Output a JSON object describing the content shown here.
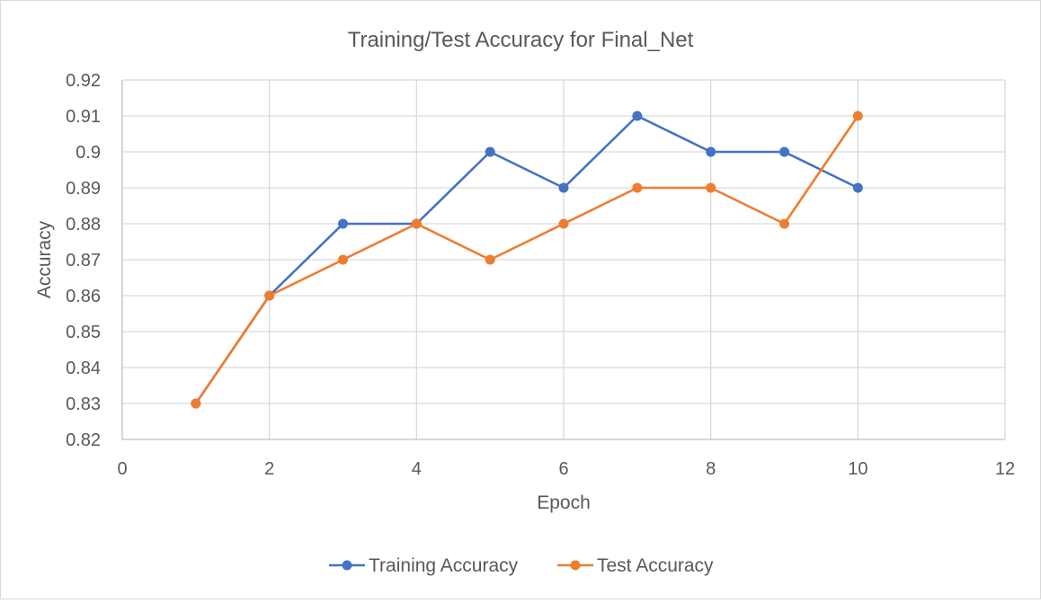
{
  "chart_data": {
    "type": "line",
    "title": "Training/Test Accuracy for Final_Net",
    "xlabel": "Epoch",
    "ylabel": "Accuracy",
    "xlim": [
      0,
      12
    ],
    "ylim": [
      0.82,
      0.92
    ],
    "x_ticks": [
      0,
      2,
      4,
      6,
      8,
      10,
      12
    ],
    "x_tick_labels": [
      "0",
      "2",
      "4",
      "6",
      "8",
      "10",
      "12"
    ],
    "y_ticks": [
      0.82,
      0.83,
      0.84,
      0.85,
      0.86,
      0.87,
      0.88,
      0.89,
      0.9,
      0.91,
      0.92
    ],
    "y_tick_labels": [
      "0.82",
      "0.83",
      "0.84",
      "0.85",
      "0.86",
      "0.87",
      "0.88",
      "0.89",
      "0.9",
      "0.91",
      "0.92"
    ],
    "grid": true,
    "legend_position": "bottom",
    "x": [
      1,
      2,
      3,
      4,
      5,
      6,
      7,
      8,
      9,
      10
    ],
    "series": [
      {
        "name": "Training Accuracy",
        "color": "#4472c4",
        "values": [
          0.83,
          0.86,
          0.88,
          0.88,
          0.9,
          0.89,
          0.91,
          0.9,
          0.9,
          0.89
        ]
      },
      {
        "name": "Test Accuracy",
        "color": "#ed7d31",
        "values": [
          0.83,
          0.86,
          0.87,
          0.88,
          0.87,
          0.88,
          0.89,
          0.89,
          0.88,
          0.91
        ]
      }
    ]
  }
}
